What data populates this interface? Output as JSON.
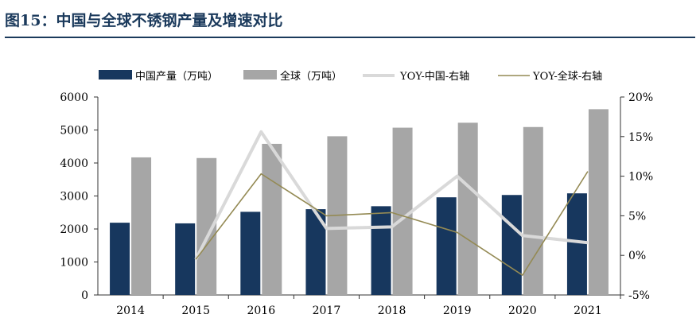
{
  "figure": {
    "title": "图15：中国与全球不锈钢产量及增速对比"
  },
  "colors": {
    "china_bar": "#17375e",
    "global_bar": "#a6a6a6",
    "yoy_china": "#d9d9d9",
    "yoy_global": "#948a54",
    "axis": "#333333",
    "text": "#000000"
  },
  "chart_data": {
    "type": "bar",
    "categories": [
      "2014",
      "2015",
      "2016",
      "2017",
      "2018",
      "2019",
      "2020",
      "2021"
    ],
    "series": [
      {
        "name": "中国产量（万吨）",
        "kind": "bar",
        "axis": "left",
        "values": [
          2190,
          2170,
          2520,
          2600,
          2690,
          2960,
          3030,
          3080
        ]
      },
      {
        "name": "全球（万吨）",
        "kind": "bar",
        "axis": "left",
        "values": [
          4170,
          4150,
          4580,
          4810,
          5070,
          5220,
          5090,
          5630
        ]
      },
      {
        "name": "YOY-中国-右轴",
        "kind": "line",
        "axis": "right",
        "values": [
          null,
          -0.5,
          15.6,
          3.4,
          3.6,
          10.0,
          2.5,
          1.6
        ]
      },
      {
        "name": "YOY-全球-右轴",
        "kind": "line",
        "axis": "right",
        "values": [
          null,
          -0.5,
          10.3,
          5.0,
          5.4,
          2.9,
          -2.5,
          10.6
        ]
      }
    ],
    "y_left": {
      "min": 0,
      "max": 6000,
      "ticks": [
        "0",
        "1000",
        "2000",
        "3000",
        "4000",
        "5000",
        "6000"
      ]
    },
    "y_right": {
      "min": -5,
      "max": 20,
      "ticks": [
        "-5%",
        "0%",
        "5%",
        "10%",
        "15%",
        "20%"
      ]
    },
    "legend_position": "top",
    "grid": false
  }
}
